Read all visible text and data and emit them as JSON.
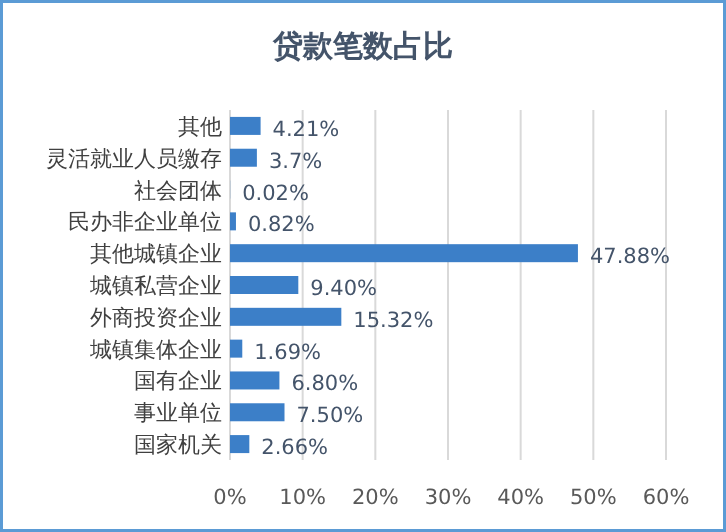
{
  "chart_data": {
    "type": "bar",
    "orientation": "horizontal",
    "title": "贷款笔数占比",
    "categories": [
      "其他",
      "灵活就业人员缴存",
      "社会团体",
      "民办非企业单位",
      "其他城镇企业",
      "城镇私营企业",
      "外商投资企业",
      "城镇集体企业",
      "国有企业",
      "事业单位",
      "国家机关"
    ],
    "values": [
      4.21,
      3.7,
      0.02,
      0.82,
      47.88,
      9.4,
      15.32,
      1.69,
      6.8,
      7.5,
      2.66
    ],
    "value_labels": [
      "4.21%",
      "3.7%",
      "0.02%",
      "0.82%",
      "47.88%",
      "9.40%",
      "15.32%",
      "1.69%",
      "6.80%",
      "7.50%",
      "2.66%"
    ],
    "color": "#3c7fc8",
    "xlim": [
      0,
      60
    ],
    "xticks": [
      {
        "value": 0,
        "label": "0%"
      },
      {
        "value": 10,
        "label": "10%"
      },
      {
        "value": 20,
        "label": "20%"
      },
      {
        "value": 30,
        "label": "30%"
      },
      {
        "value": 40,
        "label": "40%"
      },
      {
        "value": 50,
        "label": "50%"
      },
      {
        "value": 60,
        "label": "60%"
      }
    ],
    "grid": "x"
  }
}
